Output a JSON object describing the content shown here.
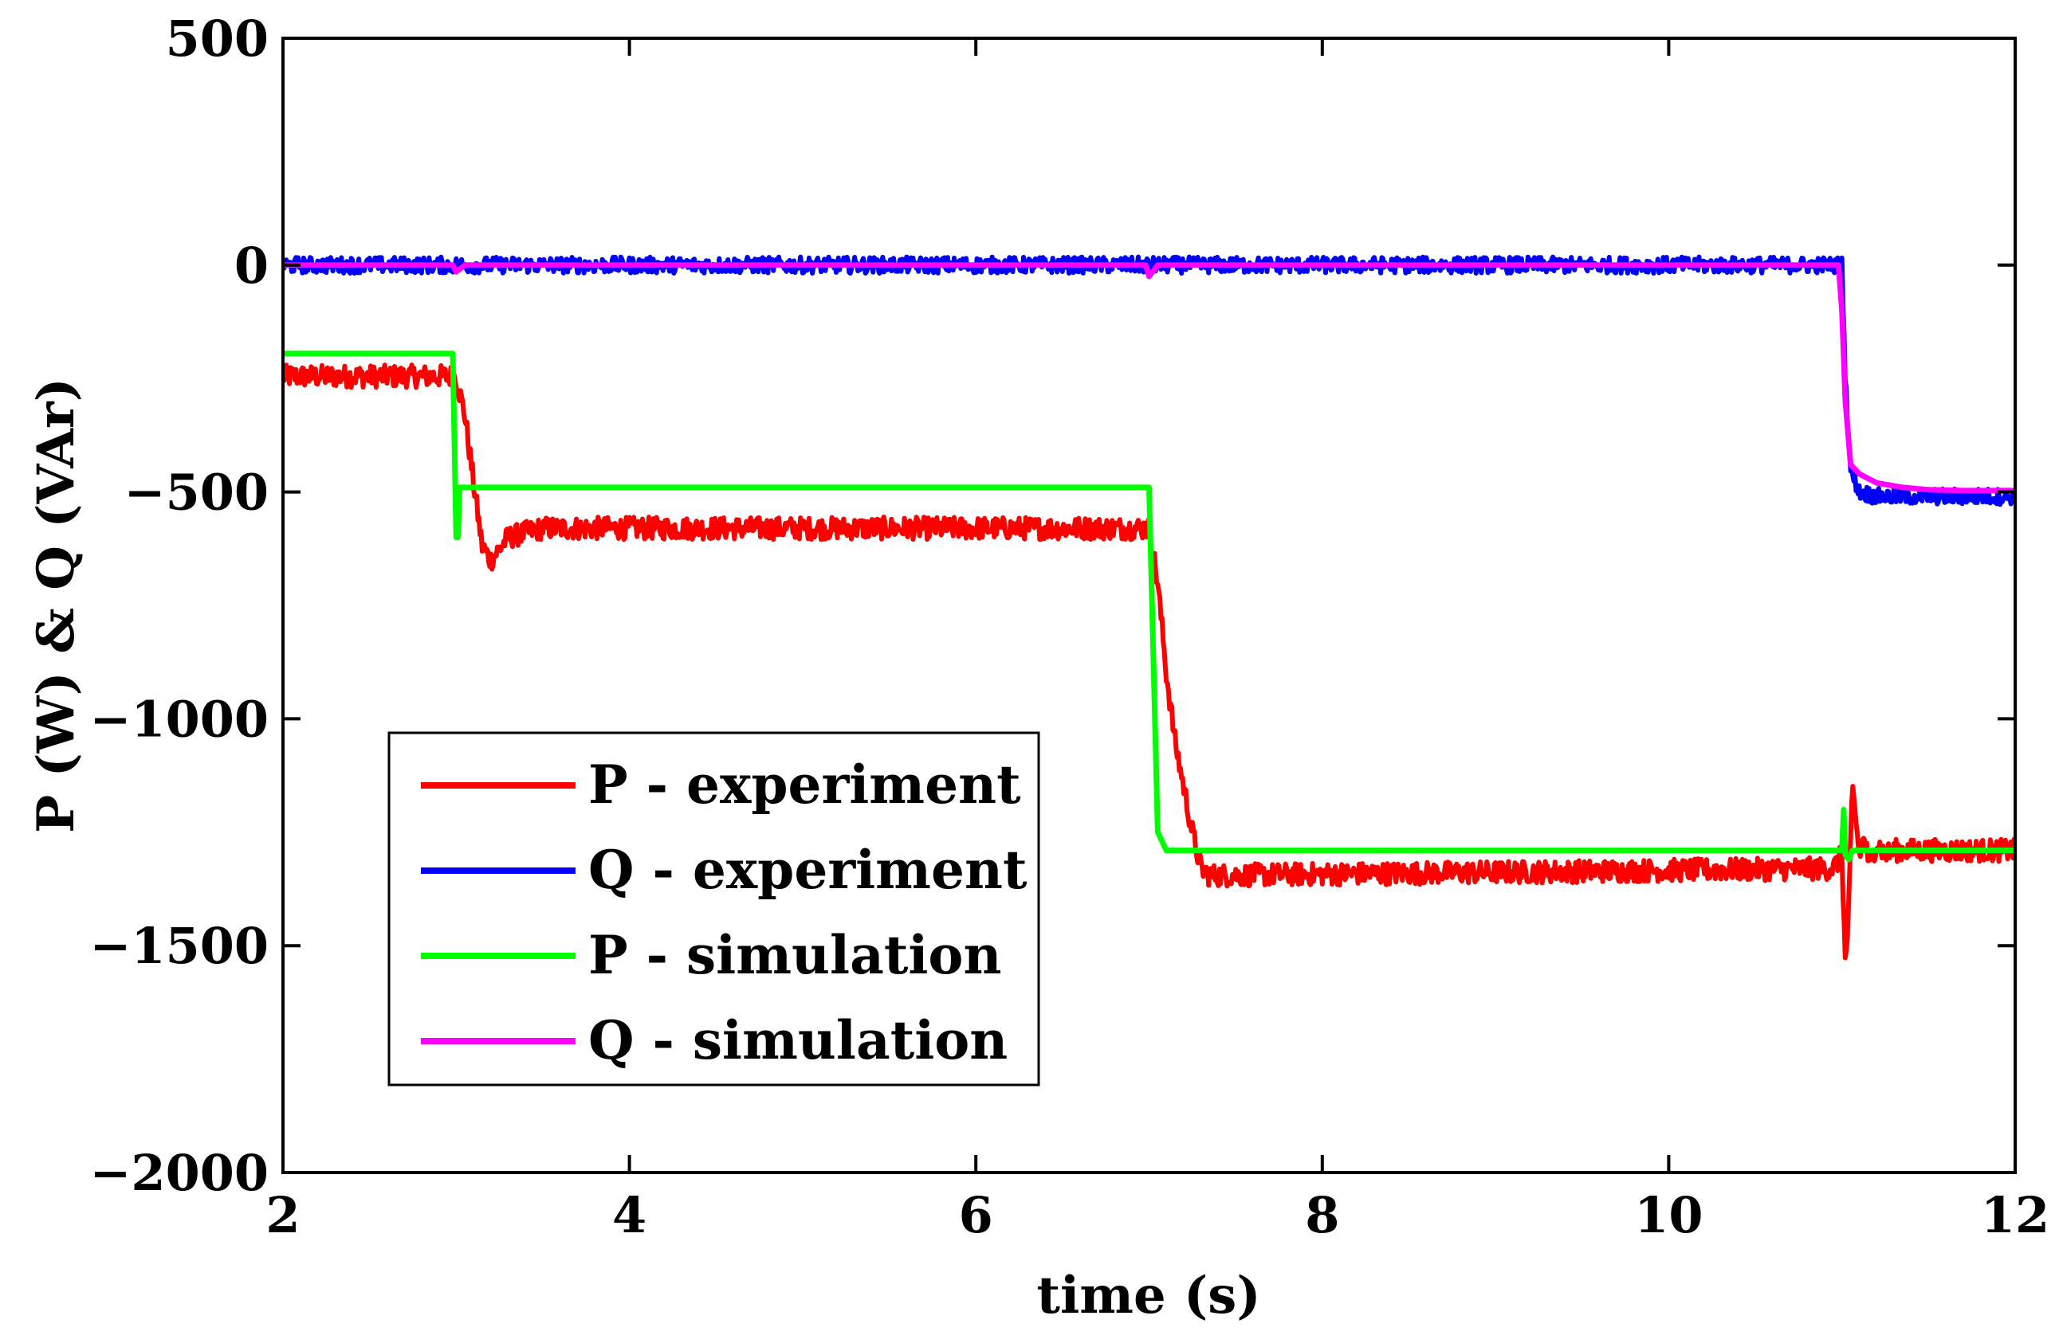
{
  "chart_data": {
    "type": "line",
    "title": "",
    "xlabel": "time (s)",
    "ylabel": "P (W) & Q (VAr)",
    "xlim": [
      2,
      12
    ],
    "ylim": [
      -2000,
      500
    ],
    "xticks": [
      2,
      4,
      6,
      8,
      10,
      12
    ],
    "xtick_labels": [
      "2",
      "4",
      "6",
      "8",
      "10",
      "12"
    ],
    "yticks": [
      500,
      0,
      -500,
      -1000,
      -1500,
      -2000
    ],
    "ytick_labels": [
      "500",
      "0",
      "−500",
      "−1000",
      "−1500",
      "−2000"
    ],
    "grid": false,
    "legend_position": "lower-left",
    "series": [
      {
        "name": "P - experiment",
        "color": "#ff0000",
        "noise": 25,
        "x": [
          2.0,
          2.98,
          3.0,
          3.05,
          3.1,
          3.15,
          3.2,
          3.3,
          3.5,
          7.0,
          7.05,
          7.1,
          7.15,
          7.2,
          7.25,
          7.3,
          7.35,
          10.95,
          11.0,
          11.02,
          11.04,
          11.06,
          11.08,
          11.1,
          11.13,
          11.16,
          11.2,
          11.25,
          11.3,
          11.4,
          12.0
        ],
        "y": [
          -245,
          -245,
          -250,
          -330,
          -480,
          -620,
          -650,
          -600,
          -580,
          -580,
          -700,
          -900,
          -1050,
          -1150,
          -1250,
          -1330,
          -1345,
          -1330,
          -1300,
          -1550,
          -1420,
          -1150,
          -1220,
          -1300,
          -1260,
          -1330,
          -1270,
          -1300,
          -1290,
          -1290,
          -1290
        ]
      },
      {
        "name": "Q - experiment",
        "color": "#0000ff",
        "noise": 18,
        "x": [
          2.0,
          11.0,
          11.02,
          11.05,
          11.1,
          11.2,
          12.0
        ],
        "y": [
          0,
          0,
          -250,
          -450,
          -500,
          -510,
          -510
        ]
      },
      {
        "name": "P - simulation",
        "color": "#00ff00",
        "noise": 0,
        "x": [
          2.0,
          2.98,
          3.0,
          3.01,
          3.02,
          3.04,
          7.0,
          7.05,
          7.1,
          11.0,
          11.01,
          11.02,
          11.04,
          11.06,
          12.0
        ],
        "y": [
          -195,
          -195,
          -600,
          -600,
          -490,
          -490,
          -490,
          -1250,
          -1290,
          -1290,
          -1200,
          -1300,
          -1310,
          -1290,
          -1290
        ]
      },
      {
        "name": "Q - simulation",
        "color": "#ff00ff",
        "noise": 0,
        "x": [
          2.0,
          2.98,
          3.0,
          3.05,
          3.15,
          6.98,
          7.0,
          7.05,
          7.15,
          10.98,
          11.0,
          11.02,
          11.05,
          11.1,
          11.2,
          11.35,
          11.5,
          11.7,
          12.0
        ],
        "y": [
          0,
          0,
          -15,
          0,
          0,
          0,
          -25,
          0,
          0,
          0,
          -100,
          -300,
          -440,
          -460,
          -480,
          -490,
          -495,
          -497,
          -497
        ]
      }
    ]
  }
}
